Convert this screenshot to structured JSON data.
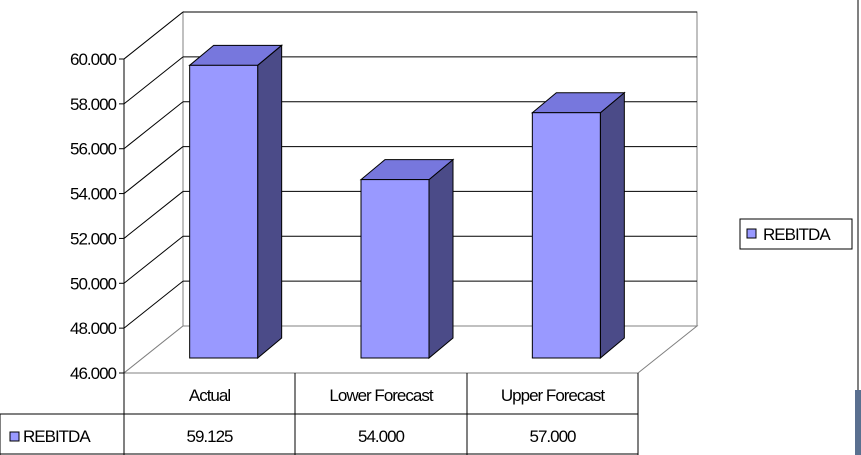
{
  "chart_data": {
    "type": "bar",
    "categories": [
      "Actual",
      "Lower Forecast",
      "Upper Forecast"
    ],
    "series": [
      {
        "name": "REBITDA",
        "values": [
          59.125,
          54.0,
          57.0
        ],
        "value_labels": [
          "59.125",
          "54.000",
          "57.000"
        ]
      }
    ],
    "y_tick_labels": [
      "46.000",
      "48.000",
      "50.000",
      "52.000",
      "54.000",
      "56.000",
      "58.000",
      "60.000"
    ],
    "ylim": [
      46,
      60
    ],
    "title": "",
    "xlabel": "",
    "ylabel": "",
    "grid": true,
    "three_d": true,
    "data_table": true,
    "legend": {
      "position": "right",
      "label": "REBITDA"
    },
    "colors": {
      "bar_front": "#9999ff",
      "bar_top": "#7777dd",
      "bar_side": "#4b4b88",
      "edge": "#000000",
      "legend_right_bar": "#5a7090"
    }
  }
}
